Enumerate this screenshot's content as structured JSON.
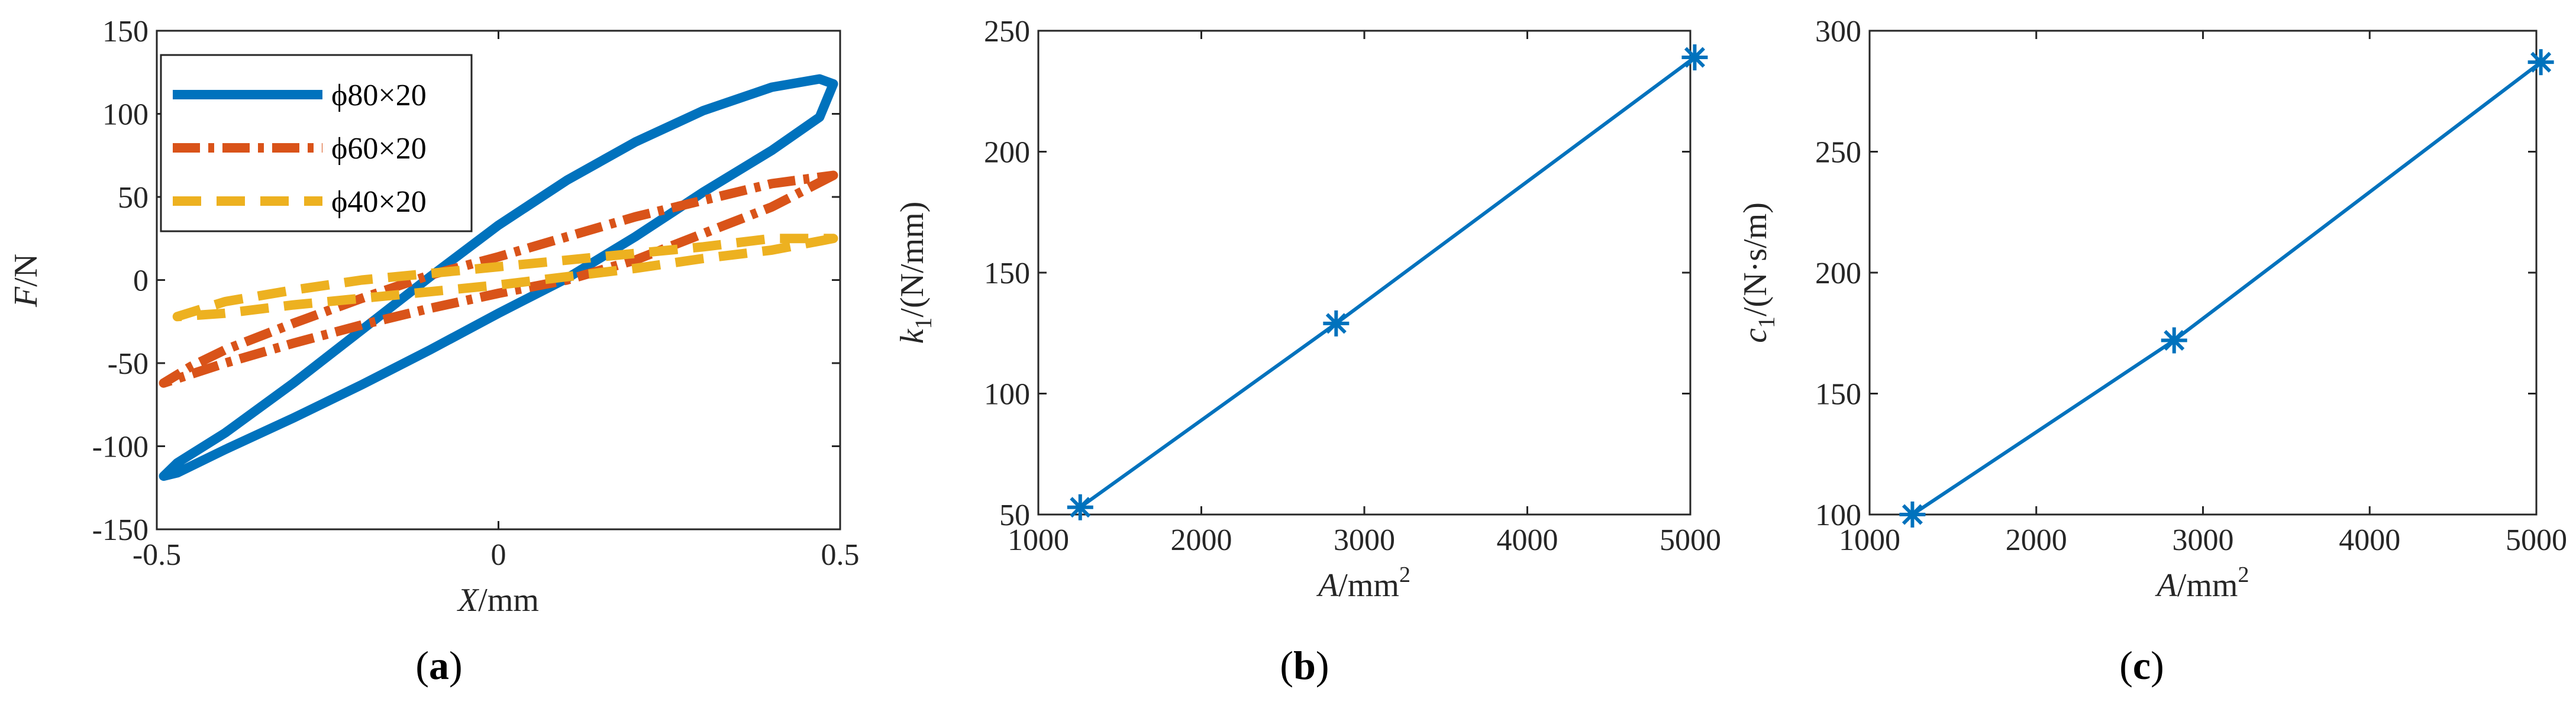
{
  "colors": {
    "blue": "#0072BD",
    "orange": "#D95319",
    "yellow": "#EDB120",
    "axis": "#262626"
  },
  "chart_data": [
    {
      "id": "a",
      "type": "line",
      "panel_label": "a",
      "xlabel": {
        "var": "X",
        "unit": "/mm"
      },
      "ylabel": {
        "var": "F",
        "unit": "/N"
      },
      "xlim": [
        -0.5,
        0.5
      ],
      "ylim": [
        -150,
        150
      ],
      "xticks": [
        -0.5,
        0,
        0.5
      ],
      "xtick_labels": [
        "-0.5",
        "0",
        "0.5"
      ],
      "yticks": [
        -150,
        -100,
        -50,
        0,
        50,
        100,
        150
      ],
      "ytick_labels": [
        "-150",
        "-100",
        "-50",
        "0",
        "50",
        "100",
        "150"
      ],
      "legend_position": "top-left",
      "series": [
        {
          "name": "ϕ80×20",
          "style": "solid",
          "color": "#0072BD",
          "closed": true,
          "x": [
            0.49,
            0.47,
            0.4,
            0.3,
            0.2,
            0.1,
            0.0,
            -0.1,
            -0.2,
            -0.3,
            -0.4,
            -0.47,
            -0.49,
            -0.47,
            -0.4,
            -0.3,
            -0.2,
            -0.1,
            0.0,
            0.1,
            0.2,
            0.3,
            0.4,
            0.47
          ],
          "y": [
            118,
            98,
            78,
            53,
            26,
            1,
            -20,
            -42,
            -63,
            -83,
            -102,
            -116,
            -118,
            -110,
            -92,
            -62,
            -30,
            2,
            33,
            60,
            83,
            102,
            116,
            121
          ]
        },
        {
          "name": "ϕ60×20",
          "style": "dashdot",
          "color": "#D95319",
          "closed": true,
          "x": [
            0.49,
            0.4,
            0.3,
            0.2,
            0.1,
            0.0,
            -0.1,
            -0.2,
            -0.3,
            -0.4,
            -0.49,
            -0.45,
            -0.4,
            -0.3,
            -0.2,
            -0.1,
            0.0,
            0.1,
            0.2,
            0.3,
            0.4
          ],
          "y": [
            63,
            44,
            28,
            12,
            0,
            -8,
            -17,
            -27,
            -38,
            -50,
            -62,
            -52,
            -42,
            -26,
            -11,
            3,
            14,
            26,
            38,
            48,
            58
          ]
        },
        {
          "name": "ϕ40×20",
          "style": "dashed",
          "color": "#EDB120",
          "closed": true,
          "x": [
            0.49,
            0.4,
            0.3,
            0.2,
            0.1,
            0.0,
            -0.1,
            -0.2,
            -0.3,
            -0.4,
            -0.47,
            -0.4,
            -0.3,
            -0.2,
            -0.1,
            0.0,
            0.1,
            0.2,
            0.3,
            0.4
          ],
          "y": [
            25,
            18,
            13,
            7,
            2,
            -3,
            -7,
            -11,
            -15,
            -20,
            -22,
            -13,
            -6,
            0,
            4,
            8,
            12,
            16,
            20,
            25
          ]
        }
      ]
    },
    {
      "id": "b",
      "type": "line",
      "panel_label": "b",
      "xlabel": {
        "var": "A",
        "unit": "/mm",
        "sup": "2"
      },
      "ylabel": {
        "var": "k",
        "sub": "1",
        "unit": "/(N/mm)"
      },
      "xlim": [
        1000,
        5000
      ],
      "ylim": [
        50,
        250
      ],
      "xticks": [
        1000,
        2000,
        3000,
        4000,
        5000
      ],
      "xtick_labels": [
        "1000",
        "2000",
        "3000",
        "4000",
        "5000"
      ],
      "yticks": [
        50,
        100,
        150,
        200,
        250
      ],
      "ytick_labels": [
        "50",
        "100",
        "150",
        "200",
        "250"
      ],
      "series": [
        {
          "marker": "asterisk",
          "color": "#0072BD",
          "x": [
            1257,
            2827,
            5027
          ],
          "y": [
            53,
            129,
            239
          ]
        }
      ]
    },
    {
      "id": "c",
      "type": "line",
      "panel_label": "c",
      "xlabel": {
        "var": "A",
        "unit": "/mm",
        "sup": "2"
      },
      "ylabel": {
        "var": "c",
        "sub": "1",
        "unit": "/(N·s/m)"
      },
      "xlim": [
        1000,
        5000
      ],
      "ylim": [
        100,
        300
      ],
      "xticks": [
        1000,
        2000,
        3000,
        4000,
        5000
      ],
      "xtick_labels": [
        "1000",
        "2000",
        "3000",
        "4000",
        "5000"
      ],
      "yticks": [
        100,
        150,
        200,
        250,
        300
      ],
      "ytick_labels": [
        "100",
        "150",
        "200",
        "250",
        "300"
      ],
      "series": [
        {
          "marker": "asterisk",
          "color": "#0072BD",
          "x": [
            1257,
            2827,
            5027
          ],
          "y": [
            100,
            172,
            287
          ]
        }
      ]
    }
  ]
}
